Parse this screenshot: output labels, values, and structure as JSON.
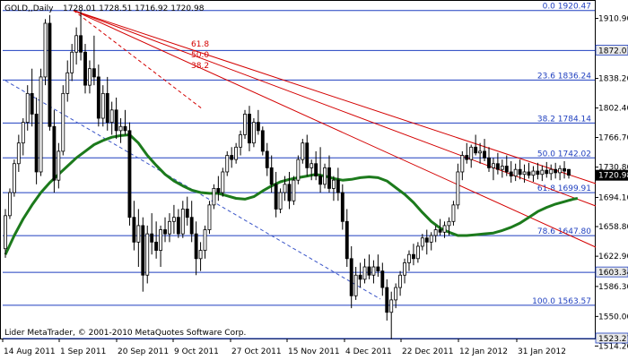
{
  "header": {
    "symbol_label": "GOLD,,Daily",
    "ohlc": "1728.01 1728.51 1716.92 1720.98"
  },
  "watermark": "Lider MetaTrader, © 2001-2010 MetaQuotes Software Corp.",
  "current_price": "1720.98",
  "colors": {
    "candle": "#000000",
    "fib": "#1f3fbf",
    "fan": "#d40000",
    "ma": "#1c7a1c",
    "trend": "#3a55c8",
    "price_tag_bg": "#000000",
    "marker_bg": "#e8e8e8"
  },
  "chart_data": {
    "type": "candlestick",
    "title": "GOLD,,Daily",
    "y_axis": {
      "min": 1523.27,
      "max": 1931.0,
      "ticks": [
        "1910.90",
        "1874.10",
        "1838.20",
        "1802.40",
        "1766.70",
        "1730.80",
        "1694.10",
        "1658.80",
        "1622.90",
        "1586.30",
        "1550.00",
        "1514.20"
      ]
    },
    "x_axis": {
      "ticks": [
        "14 Aug 2011",
        "1 Sep 2011",
        "20 Sep 2011",
        "9 Oct 2011",
        "27 Oct 2011",
        "15 Nov 2011",
        "4 Dec 2011",
        "22 Dec 2011",
        "12 Jan 2012",
        "31 Jan 2012"
      ]
    },
    "fibonacci_levels": [
      {
        "label": "0.0 1920.47",
        "value": 1920.47
      },
      {
        "label": "23.6 1836.24",
        "value": 1836.24
      },
      {
        "label": "38.2 1784.14",
        "value": 1784.14
      },
      {
        "label": "50.0 1742.02",
        "value": 1742.02
      },
      {
        "label": "61.8 1699.91",
        "value": 1699.91
      },
      {
        "label": "78.6 1647.80",
        "value": 1647.8
      },
      {
        "label": "100.0 1563.57",
        "value": 1563.57
      }
    ],
    "marker_levels": [
      {
        "label": "1872.01",
        "value": 1872.01
      },
      {
        "label": "1603.34",
        "value": 1603.34
      },
      {
        "label": "1523.27",
        "value": 1523.27
      }
    ],
    "fan_labels": [
      "61.8",
      "50.0",
      "38.2"
    ],
    "moving_average": [
      [
        0,
        1625
      ],
      [
        2,
        1648
      ],
      [
        4,
        1668
      ],
      [
        6,
        1685
      ],
      [
        8,
        1700
      ],
      [
        10,
        1712
      ],
      [
        12,
        1722
      ],
      [
        14,
        1732
      ],
      [
        16,
        1742
      ],
      [
        18,
        1750
      ],
      [
        20,
        1758
      ],
      [
        22,
        1763
      ],
      [
        24,
        1767
      ],
      [
        26,
        1769
      ],
      [
        28,
        1770
      ],
      [
        30,
        1760
      ],
      [
        32,
        1745
      ],
      [
        34,
        1733
      ],
      [
        36,
        1722
      ],
      [
        38,
        1714
      ],
      [
        40,
        1708
      ],
      [
        42,
        1703
      ],
      [
        44,
        1700
      ],
      [
        46,
        1699
      ],
      [
        48,
        1699
      ],
      [
        50,
        1696
      ],
      [
        52,
        1693
      ],
      [
        54,
        1692
      ],
      [
        56,
        1695
      ],
      [
        58,
        1702
      ],
      [
        60,
        1708
      ],
      [
        62,
        1713
      ],
      [
        64,
        1716
      ],
      [
        66,
        1718
      ],
      [
        68,
        1720
      ],
      [
        70,
        1722
      ],
      [
        72,
        1720
      ],
      [
        74,
        1717
      ],
      [
        76,
        1715
      ],
      [
        78,
        1716
      ],
      [
        80,
        1718
      ],
      [
        82,
        1719
      ],
      [
        84,
        1718
      ],
      [
        86,
        1714
      ],
      [
        88,
        1706
      ],
      [
        90,
        1698
      ],
      [
        92,
        1688
      ],
      [
        94,
        1676
      ],
      [
        96,
        1665
      ],
      [
        98,
        1657
      ],
      [
        100,
        1652
      ],
      [
        102,
        1648
      ],
      [
        104,
        1648
      ],
      [
        106,
        1649
      ],
      [
        108,
        1650
      ],
      [
        110,
        1651
      ],
      [
        112,
        1654
      ],
      [
        114,
        1658
      ],
      [
        116,
        1663
      ],
      [
        118,
        1670
      ],
      [
        120,
        1677
      ],
      [
        122,
        1682
      ],
      [
        124,
        1686
      ],
      [
        126,
        1689
      ],
      [
        128,
        1692
      ],
      [
        129,
        1693
      ]
    ],
    "candles": [
      [
        1632,
        1680,
        1621,
        1672
      ],
      [
        1672,
        1705,
        1668,
        1700
      ],
      [
        1700,
        1740,
        1695,
        1735
      ],
      [
        1735,
        1770,
        1725,
        1760
      ],
      [
        1760,
        1790,
        1745,
        1785
      ],
      [
        1785,
        1830,
        1775,
        1820
      ],
      [
        1820,
        1850,
        1780,
        1795
      ],
      [
        1795,
        1815,
        1710,
        1725
      ],
      [
        1725,
        1850,
        1720,
        1840
      ],
      [
        1840,
        1910,
        1830,
        1905
      ],
      [
        1905,
        1915,
        1775,
        1780
      ],
      [
        1780,
        1800,
        1700,
        1715
      ],
      [
        1715,
        1760,
        1705,
        1750
      ],
      [
        1750,
        1830,
        1745,
        1820
      ],
      [
        1820,
        1860,
        1810,
        1845
      ],
      [
        1845,
        1880,
        1835,
        1870
      ],
      [
        1870,
        1900,
        1855,
        1890
      ],
      [
        1890,
        1920,
        1860,
        1870
      ],
      [
        1870,
        1880,
        1820,
        1830
      ],
      [
        1830,
        1860,
        1820,
        1850
      ],
      [
        1850,
        1890,
        1830,
        1840
      ],
      [
        1840,
        1855,
        1780,
        1790
      ],
      [
        1790,
        1830,
        1780,
        1820
      ],
      [
        1820,
        1840,
        1775,
        1785
      ],
      [
        1785,
        1810,
        1770,
        1800
      ],
      [
        1800,
        1815,
        1765,
        1775
      ],
      [
        1775,
        1790,
        1760,
        1780
      ],
      [
        1780,
        1800,
        1770,
        1775
      ],
      [
        1775,
        1785,
        1660,
        1670
      ],
      [
        1670,
        1690,
        1630,
        1640
      ],
      [
        1640,
        1680,
        1610,
        1660
      ],
      [
        1660,
        1670,
        1580,
        1600
      ],
      [
        1600,
        1660,
        1590,
        1650
      ],
      [
        1650,
        1675,
        1625,
        1640
      ],
      [
        1640,
        1665,
        1620,
        1630
      ],
      [
        1630,
        1660,
        1610,
        1655
      ],
      [
        1655,
        1670,
        1640,
        1650
      ],
      [
        1650,
        1675,
        1640,
        1665
      ],
      [
        1665,
        1685,
        1650,
        1670
      ],
      [
        1670,
        1680,
        1645,
        1650
      ],
      [
        1650,
        1690,
        1645,
        1680
      ],
      [
        1680,
        1695,
        1660,
        1670
      ],
      [
        1670,
        1690,
        1640,
        1650
      ],
      [
        1650,
        1665,
        1600,
        1620
      ],
      [
        1620,
        1640,
        1605,
        1630
      ],
      [
        1630,
        1660,
        1620,
        1655
      ],
      [
        1655,
        1690,
        1650,
        1685
      ],
      [
        1685,
        1710,
        1680,
        1705
      ],
      [
        1705,
        1720,
        1690,
        1700
      ],
      [
        1700,
        1730,
        1695,
        1725
      ],
      [
        1725,
        1750,
        1720,
        1745
      ],
      [
        1745,
        1755,
        1730,
        1740
      ],
      [
        1740,
        1760,
        1735,
        1755
      ],
      [
        1755,
        1775,
        1745,
        1770
      ],
      [
        1770,
        1800,
        1765,
        1795
      ],
      [
        1795,
        1805,
        1750,
        1760
      ],
      [
        1760,
        1790,
        1755,
        1785
      ],
      [
        1785,
        1800,
        1770,
        1775
      ],
      [
        1775,
        1780,
        1745,
        1750
      ],
      [
        1750,
        1760,
        1720,
        1730
      ],
      [
        1730,
        1745,
        1700,
        1710
      ],
      [
        1710,
        1725,
        1670,
        1680
      ],
      [
        1680,
        1705,
        1675,
        1700
      ],
      [
        1700,
        1720,
        1690,
        1710
      ],
      [
        1710,
        1725,
        1680,
        1690
      ],
      [
        1690,
        1720,
        1685,
        1715
      ],
      [
        1715,
        1745,
        1710,
        1740
      ],
      [
        1740,
        1765,
        1735,
        1760
      ],
      [
        1760,
        1770,
        1720,
        1730
      ],
      [
        1730,
        1740,
        1715,
        1735
      ],
      [
        1735,
        1750,
        1715,
        1720
      ],
      [
        1720,
        1755,
        1700,
        1710
      ],
      [
        1710,
        1735,
        1705,
        1730
      ],
      [
        1730,
        1745,
        1700,
        1705
      ],
      [
        1705,
        1720,
        1690,
        1715
      ],
      [
        1715,
        1730,
        1690,
        1700
      ],
      [
        1700,
        1710,
        1655,
        1665
      ],
      [
        1665,
        1680,
        1610,
        1620
      ],
      [
        1620,
        1635,
        1560,
        1575
      ],
      [
        1575,
        1610,
        1570,
        1600
      ],
      [
        1600,
        1615,
        1585,
        1595
      ],
      [
        1595,
        1620,
        1590,
        1610
      ],
      [
        1610,
        1625,
        1595,
        1600
      ],
      [
        1600,
        1618,
        1590,
        1610
      ],
      [
        1610,
        1625,
        1598,
        1605
      ],
      [
        1605,
        1615,
        1575,
        1585
      ],
      [
        1585,
        1595,
        1545,
        1555
      ],
      [
        1555,
        1580,
        1523,
        1570
      ],
      [
        1570,
        1590,
        1560,
        1585
      ],
      [
        1585,
        1605,
        1575,
        1600
      ],
      [
        1600,
        1620,
        1590,
        1615
      ],
      [
        1615,
        1630,
        1605,
        1625
      ],
      [
        1625,
        1638,
        1612,
        1620
      ],
      [
        1620,
        1640,
        1615,
        1635
      ],
      [
        1635,
        1650,
        1630,
        1645
      ],
      [
        1645,
        1655,
        1625,
        1640
      ],
      [
        1640,
        1652,
        1630,
        1648
      ],
      [
        1648,
        1660,
        1640,
        1655
      ],
      [
        1655,
        1668,
        1648,
        1652
      ],
      [
        1652,
        1665,
        1645,
        1660
      ],
      [
        1660,
        1670,
        1648,
        1665
      ],
      [
        1665,
        1690,
        1660,
        1685
      ],
      [
        1685,
        1735,
        1680,
        1725
      ],
      [
        1725,
        1750,
        1715,
        1745
      ],
      [
        1745,
        1760,
        1735,
        1740
      ],
      [
        1740,
        1758,
        1730,
        1755
      ],
      [
        1755,
        1770,
        1745,
        1748
      ],
      [
        1748,
        1760,
        1735,
        1750
      ],
      [
        1750,
        1765,
        1738,
        1742
      ],
      [
        1742,
        1755,
        1725,
        1730
      ],
      [
        1730,
        1742,
        1715,
        1735
      ],
      [
        1735,
        1748,
        1722,
        1728
      ],
      [
        1728,
        1740,
        1718,
        1732
      ],
      [
        1732,
        1745,
        1720,
        1725
      ],
      [
        1725,
        1738,
        1712,
        1720
      ],
      [
        1720,
        1735,
        1714,
        1728
      ],
      [
        1728,
        1740,
        1716,
        1722
      ],
      [
        1722,
        1734,
        1712,
        1725
      ],
      [
        1725,
        1736,
        1717,
        1721
      ],
      [
        1721,
        1732,
        1713,
        1726
      ],
      [
        1726,
        1736,
        1716,
        1722
      ],
      [
        1722,
        1733,
        1714,
        1727
      ],
      [
        1727,
        1737,
        1718,
        1723
      ],
      [
        1723,
        1734,
        1715,
        1728
      ],
      [
        1728,
        1736,
        1717,
        1724
      ],
      [
        1724,
        1733,
        1715,
        1729
      ],
      [
        1729,
        1738,
        1717,
        1726
      ],
      [
        1728.01,
        1728.51,
        1716.92,
        1720.98
      ]
    ]
  }
}
